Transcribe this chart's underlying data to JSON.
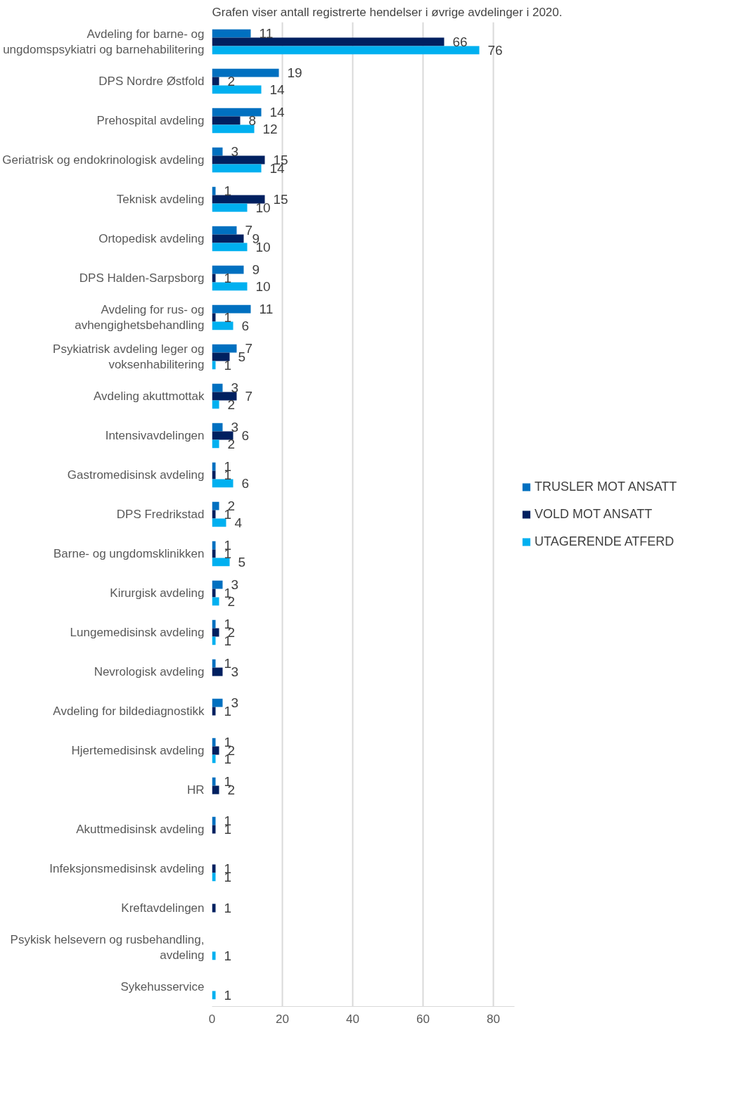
{
  "chart_data": {
    "type": "bar",
    "orientation": "horizontal",
    "title": "Grafen viser antall registrerte hendelser i øvrige avdelinger i 2020.",
    "categories": [
      "Avdeling for barne- og\nungdomspsykiatri og barnehabilitering",
      "DPS Nordre Østfold",
      "Prehospital avdeling",
      "Geriatrisk og endokrinologisk avdeling",
      "Teknisk avdeling",
      "Ortopedisk avdeling",
      "DPS Halden-Sarpsborg",
      "Avdeling for rus- og\navhengighetsbehandling",
      "Psykiatrisk avdeling leger og\nvoksenhabilitering",
      "Avdeling akuttmottak",
      "Intensivavdelingen",
      "Gastromedisinsk avdeling",
      "DPS Fredrikstad",
      "Barne- og ungdomsklinikken",
      "Kirurgisk avdeling",
      "Lungemedisinsk avdeling",
      "Nevrologisk avdeling",
      "Avdeling for bildediagnostikk",
      "Hjertemedisinsk avdeling",
      "HR",
      "Akuttmedisinsk avdeling",
      "Infeksjonsmedisinsk avdeling",
      "Kreftavdelingen",
      "Psykisk helsevern og rusbehandling,\navdeling",
      "Sykehusservice"
    ],
    "series": [
      {
        "name": "TRUSLER MOT ANSATT",
        "color": "#0070c0",
        "values": [
          11,
          19,
          14,
          3,
          1,
          7,
          9,
          11,
          7,
          3,
          3,
          1,
          2,
          1,
          3,
          1,
          1,
          3,
          1,
          1,
          1,
          null,
          null,
          null,
          null
        ]
      },
      {
        "name": "VOLD MOT ANSATT",
        "color": "#002060",
        "values": [
          66,
          2,
          8,
          15,
          15,
          9,
          1,
          1,
          5,
          7,
          6,
          1,
          1,
          1,
          1,
          2,
          3,
          1,
          2,
          2,
          1,
          1,
          1,
          null,
          null
        ]
      },
      {
        "name": "UTAGERENDE ATFERD",
        "color": "#00b0f0",
        "values": [
          76,
          14,
          12,
          14,
          10,
          10,
          10,
          6,
          1,
          2,
          2,
          6,
          4,
          5,
          2,
          1,
          null,
          null,
          1,
          null,
          null,
          1,
          null,
          1,
          1
        ]
      }
    ],
    "xlim": [
      0,
      86
    ],
    "xticks": [
      0,
      20,
      40,
      60,
      80
    ],
    "grid": "x",
    "legend": "right",
    "data_labels": true
  }
}
